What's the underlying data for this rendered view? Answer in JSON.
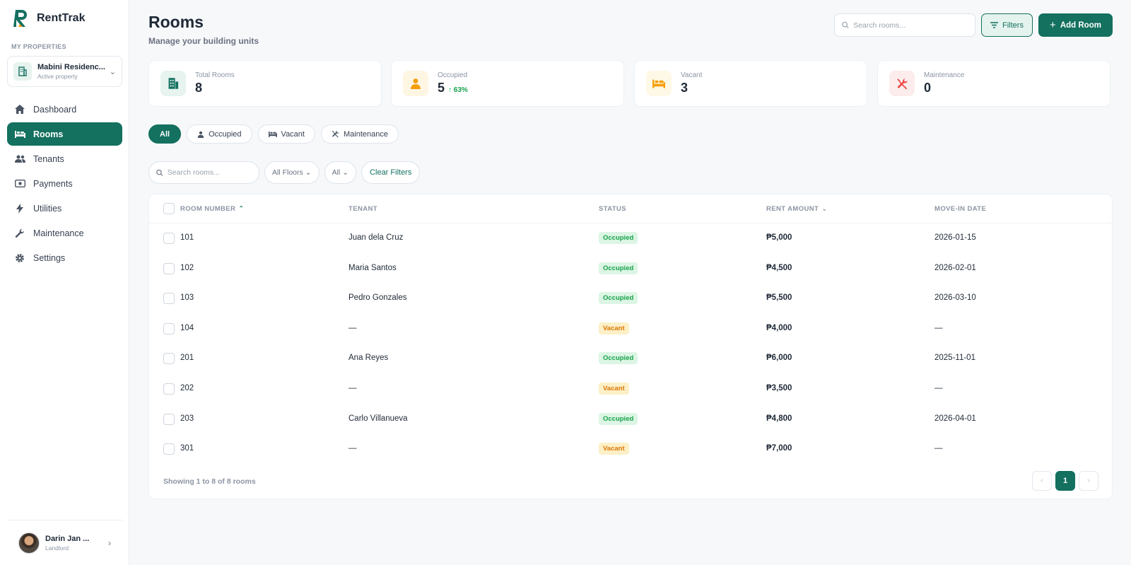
{
  "app": {
    "name": "RentTrak"
  },
  "sidebar": {
    "section_label": "MY PROPERTIES",
    "property": {
      "name": "Mabini Residenc...",
      "status": "Active property"
    },
    "items": [
      {
        "label": "Dashboard",
        "icon": "home-icon"
      },
      {
        "label": "Rooms",
        "icon": "bed-icon",
        "active": true
      },
      {
        "label": "Tenants",
        "icon": "users-icon"
      },
      {
        "label": "Payments",
        "icon": "money-icon"
      },
      {
        "label": "Utilities",
        "icon": "bolt-icon"
      },
      {
        "label": "Maintenance",
        "icon": "wrench-icon"
      },
      {
        "label": "Settings",
        "icon": "gear-icon"
      }
    ],
    "user": {
      "name": "Darin Jan ...",
      "role": "Landlord"
    }
  },
  "header": {
    "title": "Rooms",
    "subtitle": "Manage your building units",
    "search_placeholder": "Search rooms...",
    "filters_label": "Filters",
    "add_label": "Add Room"
  },
  "stats": [
    {
      "label": "Total Rooms",
      "value": "8",
      "trend": "",
      "color": "#14705f",
      "bg": "#e6f3ef"
    },
    {
      "label": "Occupied",
      "value": "5",
      "trend": "↑ 63%",
      "color": "#f59e0b",
      "bg": "#fef5e3"
    },
    {
      "label": "Vacant",
      "value": "3",
      "trend": "",
      "color": "#f59e0b",
      "bg": "#fef8e6"
    },
    {
      "label": "Maintenance",
      "value": "0",
      "trend": "",
      "color": "#ef4444",
      "bg": "#fdecec"
    }
  ],
  "tabs": [
    {
      "label": "All",
      "active": true
    },
    {
      "label": "Occupied"
    },
    {
      "label": "Vacant"
    },
    {
      "label": "Maintenance"
    }
  ],
  "filters": {
    "search_placeholder": "Search rooms...",
    "floor_label": "All Floors",
    "status_label": "All",
    "clear_label": "Clear Filters"
  },
  "table": {
    "columns": [
      "ROOM NUMBER",
      "TENANT",
      "STATUS",
      "RENT AMOUNT",
      "MOVE-IN DATE"
    ],
    "rows": [
      {
        "room": "101",
        "tenant": "Juan dela Cruz",
        "status": "Occupied",
        "rent": "₱5,000",
        "move_in": "2026-01-15"
      },
      {
        "room": "102",
        "tenant": "Maria Santos",
        "status": "Occupied",
        "rent": "₱4,500",
        "move_in": "2026-02-01"
      },
      {
        "room": "103",
        "tenant": "Pedro Gonzales",
        "status": "Occupied",
        "rent": "₱5,500",
        "move_in": "2026-03-10"
      },
      {
        "room": "104",
        "tenant": "—",
        "status": "Vacant",
        "rent": "₱4,000",
        "move_in": "—"
      },
      {
        "room": "201",
        "tenant": "Ana Reyes",
        "status": "Occupied",
        "rent": "₱6,000",
        "move_in": "2025-11-01"
      },
      {
        "room": "202",
        "tenant": "—",
        "status": "Vacant",
        "rent": "₱3,500",
        "move_in": "—"
      },
      {
        "room": "203",
        "tenant": "Carlo Villanueva",
        "status": "Occupied",
        "rent": "₱4,800",
        "move_in": "2026-04-01"
      },
      {
        "room": "301",
        "tenant": "—",
        "status": "Vacant",
        "rent": "₱7,000",
        "move_in": "—"
      }
    ],
    "footer": "Showing 1 to 8 of 8 rooms",
    "current_page": "1"
  },
  "colors": {
    "accent": "#14705f",
    "occupied": "#16a34a",
    "vacant": "#d97706"
  }
}
